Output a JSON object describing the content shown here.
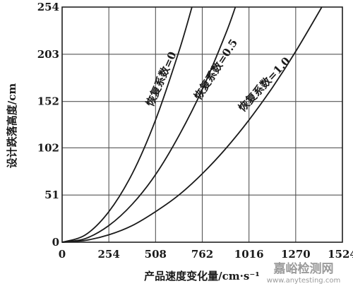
{
  "chart_data": {
    "type": "line",
    "title": "",
    "xlabel": "产品速度变化量/cm·s⁻¹",
    "ylabel": "设计跌落高度/cm",
    "xlim": [
      0,
      1524
    ],
    "ylim": [
      0,
      254
    ],
    "x_ticks": [
      "0",
      "254",
      "508",
      "762",
      "1016",
      "1270",
      "1524"
    ],
    "y_ticks": [
      "0",
      "51",
      "102",
      "152",
      "203",
      "254"
    ],
    "grid": true,
    "series": [
      {
        "name": "恢复系数=0",
        "x": [
          0,
          127,
          254,
          381,
          508,
          635,
          706
        ],
        "y": [
          0,
          8,
          33,
          74,
          132,
          206,
          254
        ]
      },
      {
        "name": "恢复系数=0.5",
        "x": [
          0,
          127,
          254,
          381,
          508,
          635,
          762,
          889,
          942
        ],
        "y": [
          0,
          4,
          18,
          41,
          73,
          115,
          165,
          225,
          254
        ]
      },
      {
        "name": "恢复系数=1.0",
        "x": [
          0,
          127,
          254,
          381,
          508,
          635,
          762,
          889,
          1016,
          1143,
          1270,
          1412
        ],
        "y": [
          0,
          2,
          8,
          18,
          33,
          51,
          74,
          101,
          132,
          167,
          206,
          254
        ]
      }
    ]
  },
  "watermark": {
    "line1": "嘉峪检测网",
    "line2": "www.anytesting.com"
  }
}
